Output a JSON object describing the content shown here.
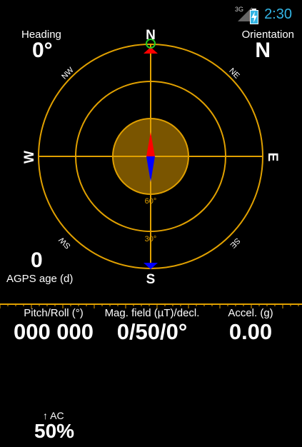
{
  "status_bar": {
    "network": "3G",
    "time": "2:30",
    "icons": [
      "signal-icon",
      "battery-charging-icon"
    ]
  },
  "heading": {
    "label": "Heading",
    "value": "0°"
  },
  "orientation": {
    "label": "Orientation",
    "value": "N"
  },
  "compass": {
    "cardinals": {
      "north": "N",
      "south": "S",
      "east": "E",
      "west": "W"
    },
    "intercardinals": {
      "nw": "NW",
      "ne": "NE",
      "sw": "SW",
      "se": "SE"
    },
    "ring_labels": {
      "inner": "60°",
      "outer": "30°"
    },
    "colors": {
      "ring": "#e0a000",
      "center_fill": "#7a5500",
      "needle_north": "#ff0000",
      "needle_south": "#0000ff",
      "marker_green": "#22cc22",
      "top_marker": "#ff0000",
      "bottom_marker": "#0000ff"
    }
  },
  "agps": {
    "value": "0",
    "label": "AGPS age (d)"
  },
  "sensors": {
    "pitch_roll": {
      "label": "Pitch/Roll (°)",
      "value": "000 000"
    },
    "mag_field": {
      "label": "Mag. field (µT)/decl.",
      "value": "0/50/0°"
    },
    "accel": {
      "label": "Accel. (g)",
      "value": "0.00"
    }
  },
  "accuracy": {
    "label": "↑ AC",
    "value": "50%"
  }
}
